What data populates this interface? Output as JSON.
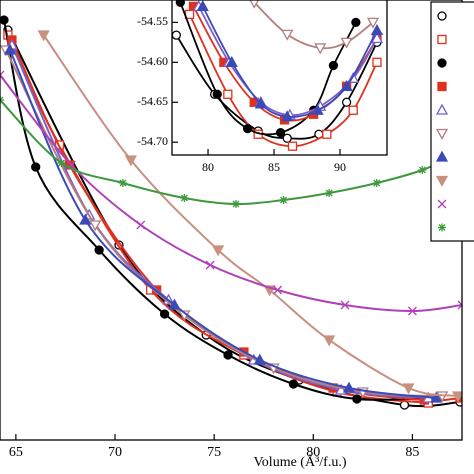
{
  "chart_data": [
    {
      "type": "line",
      "xlabel": "Volume (Å³/f.u.)",
      "xlim": [
        64.2,
        87.5
      ],
      "xticks": [
        65,
        70,
        75,
        80,
        85
      ],
      "ylim": [
        0,
        440
      ],
      "series": [
        {
          "color": "#000000",
          "marker": "circle",
          "filled": false,
          "x": [
            64.6,
            70.2,
            74.6,
            79.3,
            84.6,
            87.4
          ],
          "values": [
            410,
            195,
            105,
            60,
            35,
            38
          ]
        },
        {
          "color": "#e0301e",
          "marker": "square",
          "filled": false,
          "x": [
            64.6,
            67.2,
            71.8,
            76.5,
            81.2,
            85.8
          ],
          "values": [
            405,
            295,
            150,
            85,
            48,
            37
          ]
        },
        {
          "color": "#000000",
          "marker": "circle",
          "filled": true,
          "x": [
            64.4,
            66,
            69.2,
            72.5,
            75.7,
            79,
            82.2,
            86
          ],
          "values": [
            420,
            273,
            190,
            126,
            85,
            56,
            41,
            42
          ]
        },
        {
          "color": "#e0301e",
          "marker": "square",
          "filled": true,
          "x": [
            64.8,
            67.7,
            72.1,
            76.5,
            81,
            85.6,
            87.4
          ],
          "values": [
            400,
            275,
            150,
            88,
            52,
            40,
            42
          ]
        },
        {
          "color": "#7a5fd0",
          "marker": "triangle-up",
          "filled": false,
          "x": [
            64.8,
            68.7,
            72.7,
            77,
            81.4,
            85.8
          ],
          "values": [
            395,
            225,
            140,
            80,
            50,
            42
          ]
        },
        {
          "color": "#b47e7e",
          "marker": "triangle-down",
          "filled": false,
          "x": [
            64.5,
            69,
            73.5,
            78,
            82.5,
            86.5
          ],
          "values": [
            390,
            215,
            125,
            72,
            48,
            44
          ]
        },
        {
          "color": "#3a4bb8",
          "marker": "triangle-up",
          "filled": true,
          "x": [
            64.7,
            68.5,
            73,
            77.3,
            81.8,
            86.2
          ],
          "values": [
            390,
            220,
            135,
            80,
            52,
            42
          ]
        },
        {
          "color": "#c8907f",
          "marker": "triangle-down",
          "filled": true,
          "x": [
            66.4,
            70.8,
            75.2,
            77.8,
            80.8,
            84.8,
            87.3
          ],
          "values": [
            405,
            280,
            190,
            150,
            100,
            52,
            44
          ]
        },
        {
          "color": "#b040b8",
          "marker": "x",
          "filled": false,
          "x": [
            64.2,
            67.8,
            71.3,
            74.8,
            78.2,
            81.6,
            85,
            87.5
          ],
          "values": [
            365,
            275,
            215,
            175,
            150,
            135,
            129,
            135
          ]
        },
        {
          "color": "#3c9a3c",
          "marker": "asterisk",
          "filled": false,
          "x": [
            64.2,
            67.3,
            70.4,
            73.5,
            76.1,
            78.5,
            80.8,
            83.2,
            85.5,
            87.5
          ],
          "values": [
            340,
            277,
            257,
            242,
            236,
            240,
            247,
            257,
            270,
            288
          ]
        }
      ]
    },
    {
      "type": "line",
      "xlim": [
        77.27,
        93.56
      ],
      "xticks": [
        80,
        85,
        90
      ],
      "ylim": [
        -54.716,
        -54.522
      ],
      "yticks": [
        {
          "value": -54.7,
          "label": "-54.70"
        },
        -54.65,
        {
          "value": -54.6,
          "label": "-54.60"
        },
        -54.55
      ],
      "series": [
        {
          "color": "#000000",
          "marker": "circle",
          "filled": false,
          "x": [
            77.6,
            80.5,
            83.8,
            86,
            88.4,
            90.5,
            92.8
          ],
          "values": [
            -54.566,
            -54.64,
            -54.686,
            -54.695,
            -54.69,
            -54.65,
            -54.575
          ]
        },
        {
          "color": "#e0301e",
          "marker": "square",
          "filled": false,
          "x": [
            78.6,
            81.5,
            83.8,
            86.4,
            89,
            91,
            92.8
          ],
          "values": [
            -54.54,
            -54.64,
            -54.69,
            -54.705,
            -54.69,
            -54.66,
            -54.6
          ]
        },
        {
          "color": "#000000",
          "marker": "circle",
          "filled": true,
          "x": [
            77.9,
            80.7,
            83,
            85.5,
            88,
            89.5,
            91.2
          ],
          "values": [
            -54.525,
            -54.64,
            -54.683,
            -54.688,
            -54.66,
            -54.604,
            -54.55
          ]
        },
        {
          "color": "#e0301e",
          "marker": "square",
          "filled": true,
          "x": [
            78.9,
            81.2,
            83.5,
            85.8,
            88,
            90.5,
            92.8
          ],
          "values": [
            -54.53,
            -54.6,
            -54.65,
            -54.672,
            -54.665,
            -54.63,
            -54.57
          ]
        },
        {
          "color": "#7a5fd0",
          "marker": "triangle-up",
          "filled": false,
          "x": [
            79.3,
            81.6,
            84,
            86.2,
            88.5,
            91,
            92.8
          ],
          "values": [
            -54.53,
            -54.6,
            -54.65,
            -54.666,
            -54.655,
            -54.62,
            -54.57
          ]
        },
        {
          "color": "#b47e7e",
          "marker": "triangle-down",
          "filled": false,
          "x": [
            83.5,
            86,
            88.5,
            90.5,
            92.5
          ],
          "values": [
            -54.525,
            -54.565,
            -54.582,
            -54.575,
            -54.55
          ]
        },
        {
          "color": "#3a4bb8",
          "marker": "triangle-up",
          "filled": true,
          "x": [
            79.6,
            81.8,
            84,
            86,
            88.3,
            90.5,
            92.8
          ],
          "values": [
            -54.53,
            -54.6,
            -54.652,
            -54.668,
            -54.66,
            -54.63,
            -54.56
          ]
        }
      ]
    }
  ]
}
